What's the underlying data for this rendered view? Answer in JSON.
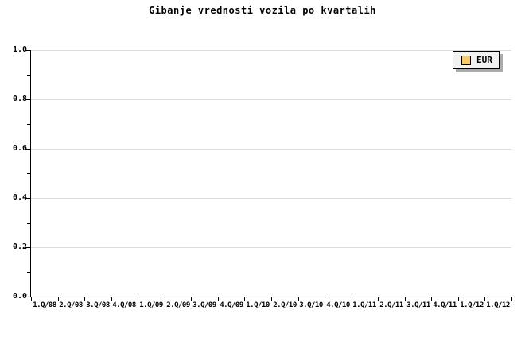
{
  "title": "Gibanje vrednosti vozila po kvartalih",
  "colors": {
    "background": "#ffffff",
    "axis": "#000000",
    "grid": "#dcdcdc",
    "legend_bg": "#f2f2f2",
    "legend_shadow": "#aaaaaa",
    "series_eur": "#facb64"
  },
  "legend": {
    "position": "top-right",
    "items": [
      {
        "label": "EUR",
        "swatch_color": "#facb64"
      }
    ]
  },
  "chart_data": {
    "type": "line",
    "title": "Gibanje vrednosti vozila po kvartalih",
    "categories": [
      "1.Q/08",
      "2.Q/08",
      "3.Q/08",
      "4.Q/08",
      "1.Q/09",
      "2.Q/09",
      "3.Q/09",
      "4.Q/09",
      "1.Q/10",
      "2.Q/10",
      "3.Q/10",
      "4.Q/10",
      "1.Q/11",
      "2.Q/11",
      "3.Q/11",
      "4.Q/11",
      "1.Q/12",
      "1.Q/12"
    ],
    "series": [
      {
        "name": "EUR",
        "color": "#facb64",
        "values": []
      }
    ],
    "xlabel": "",
    "ylabel": "",
    "ylim": [
      0.0,
      1.0
    ],
    "y_major_ticks": [
      0.0,
      0.2,
      0.4,
      0.6,
      0.8,
      1.0
    ],
    "y_minor_step": 0.1,
    "y_tick_labels": [
      "0.0",
      "0.2",
      "0.4",
      "0.6",
      "0.8",
      "1.0"
    ],
    "grid": "horizontal-major",
    "legend_position": "top-right"
  }
}
